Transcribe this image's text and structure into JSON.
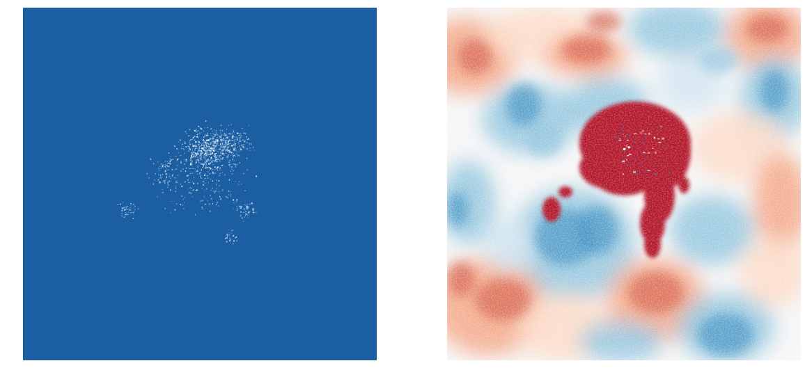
{
  "figure": {
    "panels": [
      {
        "id": "left",
        "description_name": "sparse-scatter-map",
        "background_color": "#1c5ea2",
        "speckle_colors": [
          "#ffffff",
          "#a9c9e2",
          "#f4b6a4"
        ]
      },
      {
        "id": "right",
        "description_name": "diverging-field-map",
        "colormap": "RdBu",
        "color_stops": [
          "#b2182b",
          "#d6604d",
          "#f4a582",
          "#fddbc7",
          "#f7f7f7",
          "#d1e5f0",
          "#92c5de",
          "#4393c3",
          "#2166ac"
        ]
      }
    ]
  }
}
